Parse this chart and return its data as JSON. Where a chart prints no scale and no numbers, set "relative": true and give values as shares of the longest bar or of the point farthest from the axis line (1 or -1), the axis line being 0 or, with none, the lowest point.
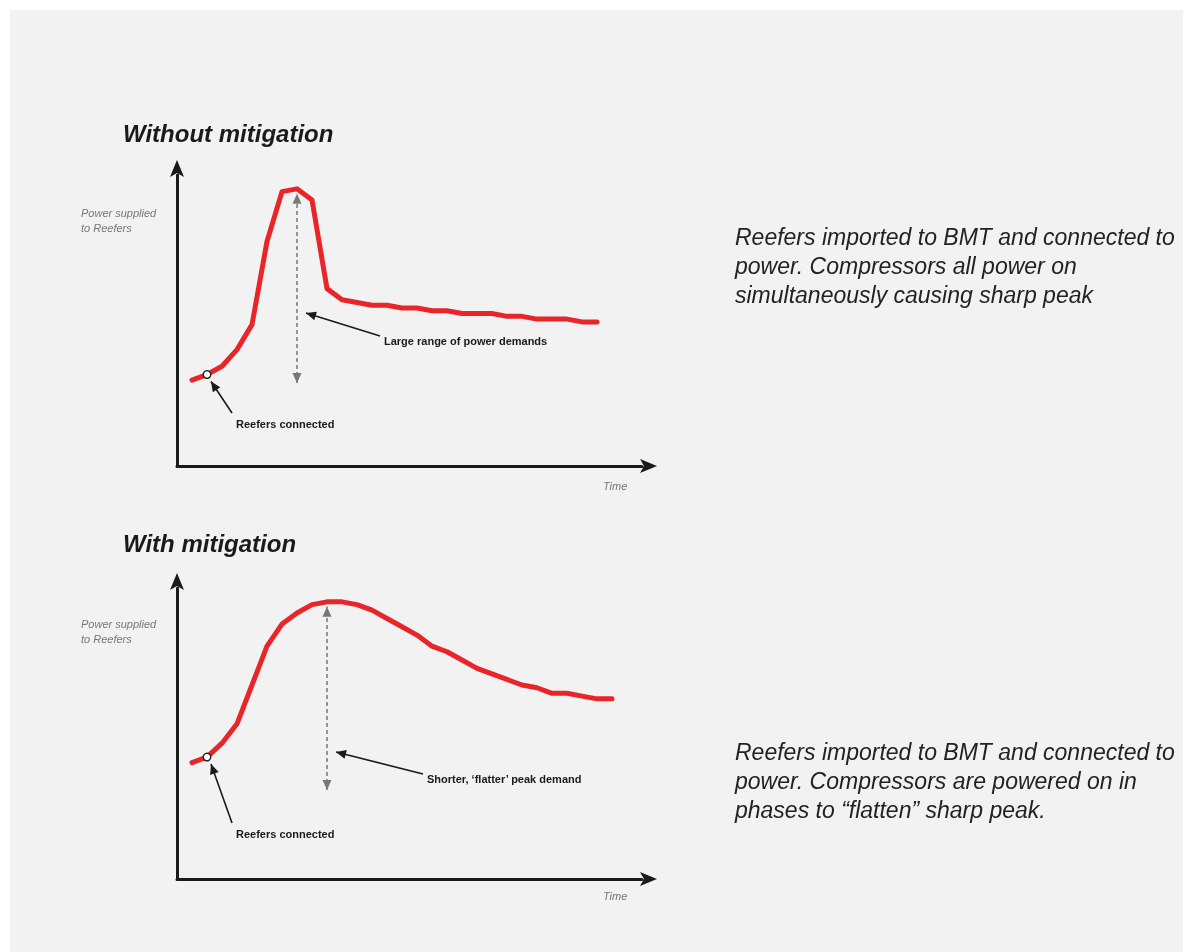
{
  "chart_data": [
    {
      "type": "line",
      "title": "Without mitigation",
      "ylabel": "Power supplied to Reefers",
      "xlabel": "Time",
      "relative": true,
      "categories": [
        null,
        null,
        null,
        null,
        null,
        null,
        null,
        null,
        null,
        null,
        null,
        null,
        null,
        null,
        null,
        null,
        null,
        null,
        null,
        null,
        null,
        null,
        null,
        null,
        null,
        null,
        null,
        null,
        null,
        null,
        null,
        null
      ],
      "series": [
        {
          "color": "#e8262a",
          "values": [
            null,
            0.31,
            0.33,
            0.36,
            0.42,
            0.51,
            0.81,
            0.99,
            1.0,
            0.96,
            0.64,
            0.6,
            0.59,
            0.58,
            0.58,
            0.57,
            0.57,
            0.56,
            0.56,
            0.55,
            0.55,
            0.55,
            0.54,
            0.54,
            0.53,
            0.53,
            0.53,
            0.52,
            0.52,
            null,
            null,
            null
          ]
        }
      ],
      "annotations": [
        "Large range of power demands",
        "Reefers connected",
        "Reefers imported to BMT and connected to power. Compressors all power on simultaneously causing sharp peak"
      ]
    },
    {
      "type": "line",
      "title": "With mitigation",
      "ylabel": "Power supplied to Reefers",
      "xlabel": "Time",
      "relative": true,
      "categories": [
        null,
        null,
        null,
        null,
        null,
        null,
        null,
        null,
        null,
        null,
        null,
        null,
        null,
        null,
        null,
        null,
        null,
        null,
        null,
        null,
        null,
        null,
        null,
        null,
        null,
        null,
        null,
        null,
        null,
        null,
        null,
        null
      ],
      "series": [
        {
          "color": "#e8262a",
          "values": [
            null,
            0.42,
            0.44,
            0.49,
            0.56,
            0.7,
            0.84,
            0.92,
            0.96,
            0.99,
            1.0,
            1.0,
            0.99,
            0.97,
            0.94,
            0.91,
            0.88,
            0.84,
            0.82,
            0.79,
            0.76,
            0.74,
            0.72,
            0.7,
            0.69,
            0.67,
            0.67,
            0.66,
            0.65,
            0.65,
            null,
            null
          ]
        }
      ],
      "annotations": [
        "Shorter, ‘flatter’ peak demand",
        "Reefers connected",
        "Reefers imported to BMT and connected to power. Compressors are powered on in phases to “flatten” sharp peak."
      ]
    }
  ]
}
